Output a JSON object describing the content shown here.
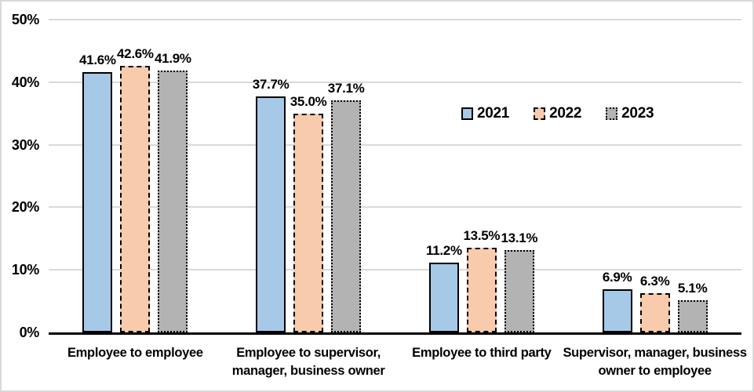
{
  "chart_data": {
    "type": "bar",
    "title": "",
    "xlabel": "",
    "ylabel": "",
    "ylim": [
      0,
      50
    ],
    "yticks": [
      "0%",
      "10%",
      "20%",
      "30%",
      "40%",
      "50%"
    ],
    "grid": true,
    "legend_position": "inside-upper-right",
    "categories": [
      "Employee to employee",
      "Employee to supervisor, manager, business owner",
      "Employee to third party",
      "Supervisor, manager, business owner to employee"
    ],
    "category_lines": [
      [
        "Employee to employee"
      ],
      [
        "Employee to supervisor,",
        "manager, business owner"
      ],
      [
        "Employee to third party"
      ],
      [
        "Supervisor, manager, business",
        "owner to employee"
      ]
    ],
    "series": [
      {
        "name": "2021",
        "values": [
          41.6,
          37.7,
          11.2,
          6.9
        ],
        "labels": [
          "41.6%",
          "37.7%",
          "11.2%",
          "6.9%"
        ],
        "fill": "#A6C9E8",
        "border_style": "solid"
      },
      {
        "name": "2022",
        "values": [
          42.6,
          35.0,
          13.5,
          6.3
        ],
        "labels": [
          "42.6%",
          "35.0%",
          "13.5%",
          "6.3%"
        ],
        "fill": "#F7CBAC",
        "border_style": "dashed"
      },
      {
        "name": "2023",
        "values": [
          41.9,
          37.1,
          13.1,
          5.1
        ],
        "labels": [
          "41.9%",
          "37.1%",
          "13.1%",
          "5.1%"
        ],
        "fill": "#B3B3B3",
        "border_style": "dotted"
      }
    ],
    "colors": {
      "grid": "#D9D9D9",
      "axis": "#000000",
      "bar_border": "#000000",
      "frame_border": "#D9D9D9",
      "background": "#FFFFFF",
      "text": "#000000"
    }
  }
}
